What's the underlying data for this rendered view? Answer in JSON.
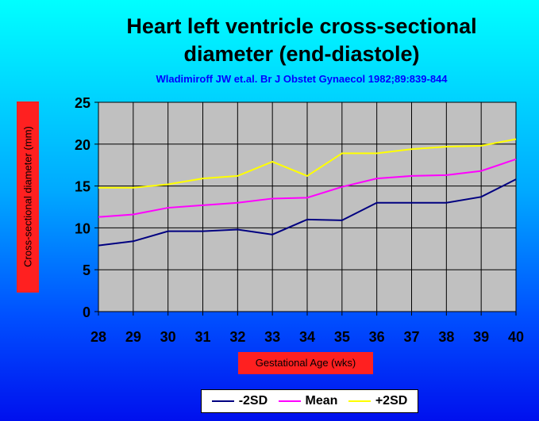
{
  "chart_data": {
    "type": "line",
    "title": "Heart left ventricle cross-sectional diameter (end-diastole)",
    "subtitle": "Wladimiroff JW et.al. Br J Obstet Gynaecol 1982;89:839-844",
    "xlabel": "Gestational Age (wks)",
    "ylabel": "Cross-sectional diameter (mm)",
    "x": [
      28,
      29,
      30,
      31,
      32,
      33,
      34,
      35,
      36,
      37,
      38,
      39,
      40
    ],
    "ylim": [
      0,
      25
    ],
    "yticks": [
      0,
      5,
      10,
      15,
      20,
      25
    ],
    "grid": true,
    "legend_position": "bottom",
    "series": [
      {
        "name": "-2SD",
        "color": "#000080",
        "values": [
          7.9,
          8.4,
          9.6,
          9.6,
          9.8,
          9.2,
          11.0,
          10.9,
          13.0,
          13.0,
          13.0,
          13.7,
          15.8
        ]
      },
      {
        "name": "Mean",
        "color": "#ff00ff",
        "values": [
          11.3,
          11.6,
          12.4,
          12.7,
          13.0,
          13.5,
          13.6,
          14.9,
          15.9,
          16.2,
          16.3,
          16.8,
          18.2
        ]
      },
      {
        "name": "+2SD",
        "color": "#ffff00",
        "values": [
          14.8,
          14.8,
          15.2,
          15.9,
          16.2,
          17.9,
          16.2,
          18.9,
          18.9,
          19.4,
          19.7,
          19.8,
          20.6
        ]
      }
    ]
  }
}
